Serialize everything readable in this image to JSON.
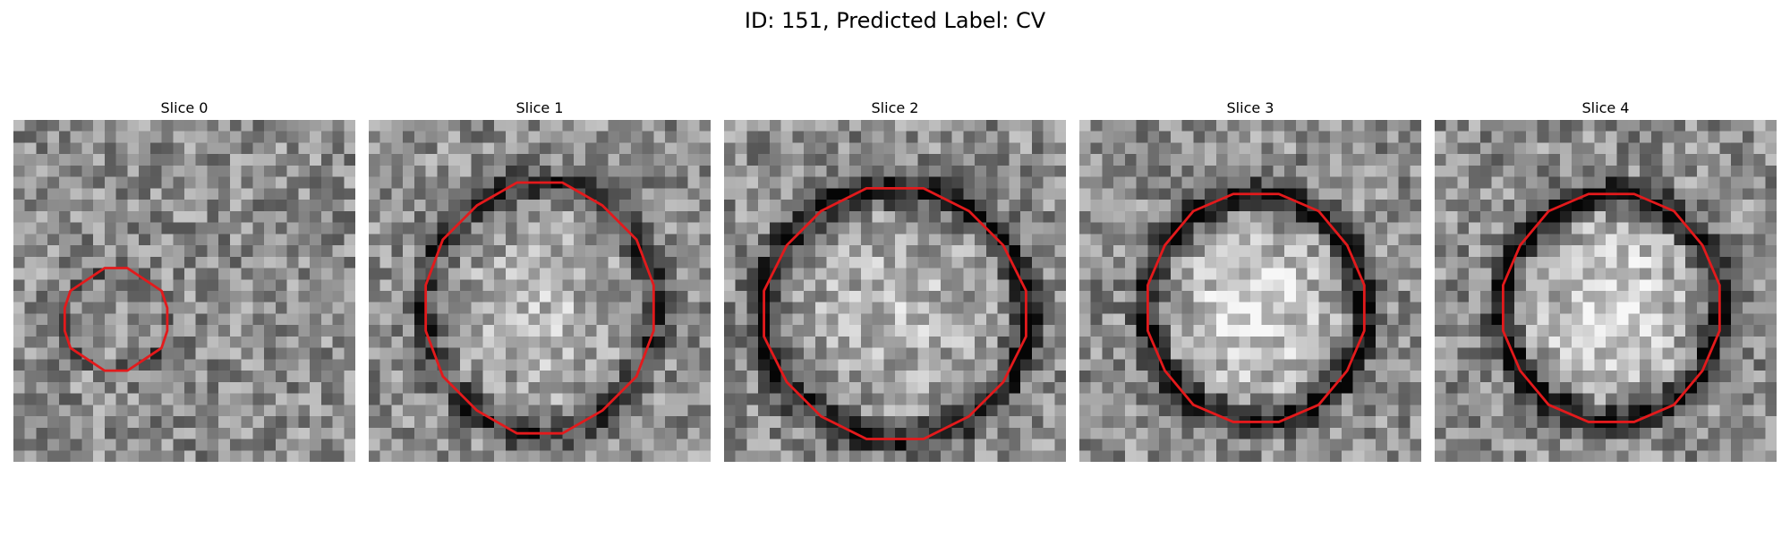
{
  "figure": {
    "title": "ID: 151, Predicted Label: CV"
  },
  "panels": [
    {
      "title": "Slice 0",
      "seed": 11,
      "ring_strength": 0.35,
      "center_bright": 0.05,
      "contour_scale": 0.55
    },
    {
      "title": "Slice 1",
      "seed": 23,
      "ring_strength": 0.55,
      "center_bright": 0.2,
      "contour_scale": 1.0
    },
    {
      "title": "Slice 2",
      "seed": 37,
      "ring_strength": 0.75,
      "center_bright": 0.2,
      "contour_scale": 1.0
    },
    {
      "title": "Slice 3",
      "seed": 41,
      "ring_strength": 0.85,
      "center_bright": 0.35,
      "contour_scale": 0.9
    },
    {
      "title": "Slice 4",
      "seed": 53,
      "ring_strength": 0.85,
      "center_bright": 0.35,
      "contour_scale": 0.9
    }
  ],
  "colors": {
    "contour": "#e31a1c"
  }
}
